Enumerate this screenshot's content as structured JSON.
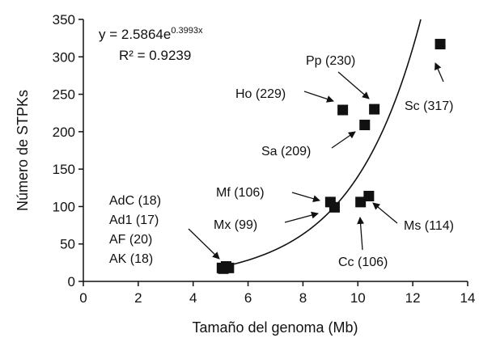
{
  "chart_data": {
    "type": "scatter",
    "xlabel": "Tamaño del genoma (Mb)",
    "ylabel": "Número de STPKs",
    "xlim": [
      0,
      14
    ],
    "ylim": [
      0,
      350
    ],
    "x_ticks": [
      "0",
      "2",
      "4",
      "6",
      "8",
      "10",
      "12",
      "14"
    ],
    "y_ticks": [
      "0",
      "50",
      "100",
      "150",
      "200",
      "250",
      "300",
      "350"
    ],
    "grid": false,
    "marker": "square",
    "marker_color": "#111111",
    "trendline": {
      "type": "exponential",
      "a": 2.5864,
      "b": 0.3993,
      "equation_base": "y = 2.5864e",
      "equation_exp": "0.3993x",
      "r_squared": "R² = 0.9239"
    },
    "points": [
      {
        "x": 5.05,
        "y": 18
      },
      {
        "x": 5.1,
        "y": 17
      },
      {
        "x": 5.2,
        "y": 20
      },
      {
        "x": 5.3,
        "y": 18
      },
      {
        "x": 9.0,
        "y": 106
      },
      {
        "x": 9.15,
        "y": 99
      },
      {
        "x": 9.45,
        "y": 229
      },
      {
        "x": 10.1,
        "y": 106
      },
      {
        "x": 10.25,
        "y": 209
      },
      {
        "x": 10.4,
        "y": 114
      },
      {
        "x": 10.6,
        "y": 230
      },
      {
        "x": 13.0,
        "y": 317
      }
    ],
    "annotations": {
      "adc": "AdC (18)",
      "ad1": "Ad1 (17)",
      "af": "AF (20)",
      "ak": "AK (18)",
      "mf": "Mf (106)",
      "mx": "Mx (99)",
      "ho": "Ho (229)",
      "pp": "Pp (230)",
      "sa": "Sa (209)",
      "sc": "Sc (317)",
      "cc": "Cc (106)",
      "ms": "Ms (114)"
    }
  }
}
